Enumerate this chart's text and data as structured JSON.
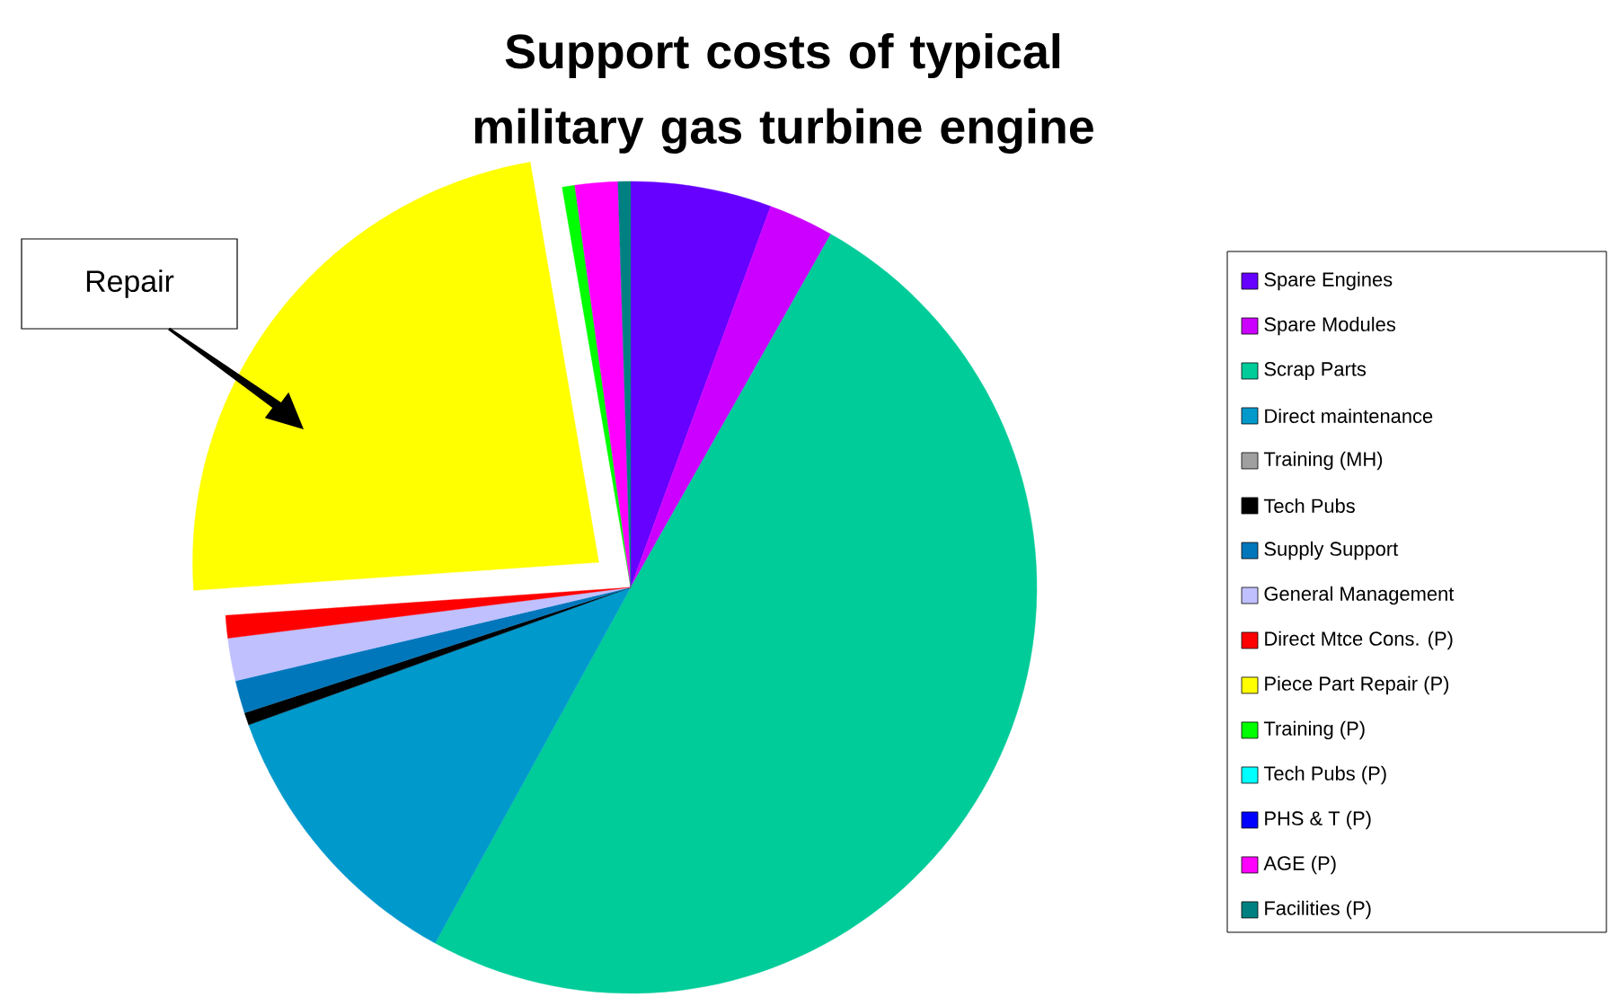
{
  "chart_data": {
    "type": "pie",
    "title": "Support costs of typical military gas turbine engine",
    "categories": [
      "Spare Engines",
      "Spare Modules",
      "Scrap Parts",
      "Direct maintenance",
      "Training (MH)",
      "Tech Pubs",
      "Supply Support",
      "General Management",
      "Direct Mtce Cons. (P)",
      "Piece Part Repair (P)",
      "Training (P)",
      "Tech Pubs (P)",
      "PHS & T (P)",
      "AGE (P)",
      "Facilities (P)"
    ],
    "values": [
      5.6,
      2.6,
      49.8,
      11.5,
      0,
      0.5,
      1.3,
      1.7,
      0.9,
      23.4,
      0.5,
      0,
      0,
      1.7,
      0.5
    ],
    "colors": [
      "#6600ff",
      "#cc00ff",
      "#00cc99",
      "#0099cc",
      "#a0a0a0",
      "#000000",
      "#0077bb",
      "#c0c0ff",
      "#ff0000",
      "#ffff00",
      "#00ff00",
      "#00ffff",
      "#0000ff",
      "#ff00ff",
      "#008080"
    ],
    "annotations": [
      {
        "text": "Repair",
        "x": "Piece Part Repair (P)"
      }
    ],
    "legend": "right"
  }
}
